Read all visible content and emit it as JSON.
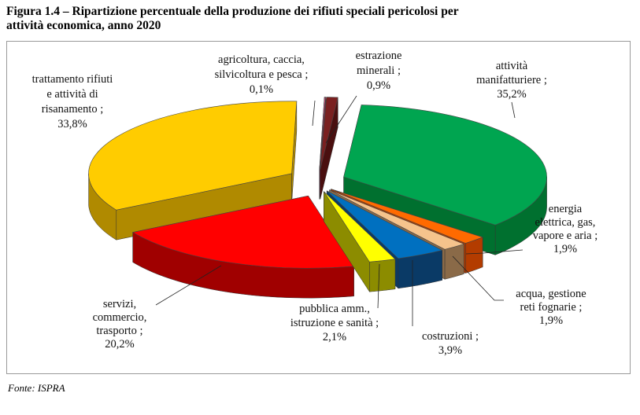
{
  "figure": {
    "title_line1": "Figura 1.4 – Ripartizione percentuale della produzione dei rifiuti speciali pericolosi per",
    "title_line2": "attività economica, anno 2020",
    "source": "Fonte: ISPRA"
  },
  "chart_data": {
    "type": "pie",
    "title": "Figura 1.4 – Ripartizione percentuale della produzione dei rifiuti speciali pericolosi per attività economica, anno 2020",
    "slices": [
      {
        "name": "attività manifatturiere",
        "value": 35.2,
        "label_lines": [
          "attività",
          "manifatturiere ;",
          "35,2%"
        ],
        "color": "#00a550",
        "side": "#00702f"
      },
      {
        "name": "energia elettrica, gas, vapore e aria",
        "value": 1.9,
        "label_lines": [
          "energia",
          "elettrica, gas,",
          "vapore e aria ;",
          "1,9%"
        ],
        "color": "#ff6a00",
        "side": "#b33c00"
      },
      {
        "name": "acqua, gestione reti fognarie",
        "value": 1.9,
        "label_lines": [
          "acqua, gestione",
          "reti fognarie ;",
          "1,9%"
        ],
        "color": "#f5c38c",
        "side": "#8a6a48"
      },
      {
        "name": "costruzioni",
        "value": 3.9,
        "label_lines": [
          "costruzioni ;",
          "3,9%"
        ],
        "color": "#0070c0",
        "side": "#0a3a66"
      },
      {
        "name": "pubblica amm., istruzione e sanità",
        "value": 2.1,
        "label_lines": [
          "pubblica amm.,",
          "istruzione e sanità ;",
          "2,1%"
        ],
        "color": "#ffff00",
        "side": "#8c8c00"
      },
      {
        "name": "servizi, commercio, trasporto",
        "value": 20.2,
        "label_lines": [
          "servizi,",
          "commercio,",
          "trasporto ;",
          "20,2%"
        ],
        "color": "#ff0000",
        "side": "#a00000"
      },
      {
        "name": "trattamento rifiuti e attività di risanamento",
        "value": 33.8,
        "label_lines": [
          "trattamento  rifiuti",
          "e attività di",
          "risanamento ;",
          "33,8%"
        ],
        "color": "#ffcc00",
        "side": "#b08a00"
      },
      {
        "name": "agricoltura, caccia, silvicoltura e pesca",
        "value": 0.1,
        "label_lines": [
          "agricoltura, caccia,",
          "silvicoltura e pesca ;",
          "0,1%"
        ],
        "color": "#c0507a",
        "side": "#6e2040"
      },
      {
        "name": "estrazione minerali",
        "value": 0.9,
        "label_lines": [
          "estrazione",
          "minerali ;",
          "0,9%"
        ],
        "color": "#7a2020",
        "side": "#4a0f0f"
      }
    ],
    "legend": "none",
    "data_labels": true
  }
}
